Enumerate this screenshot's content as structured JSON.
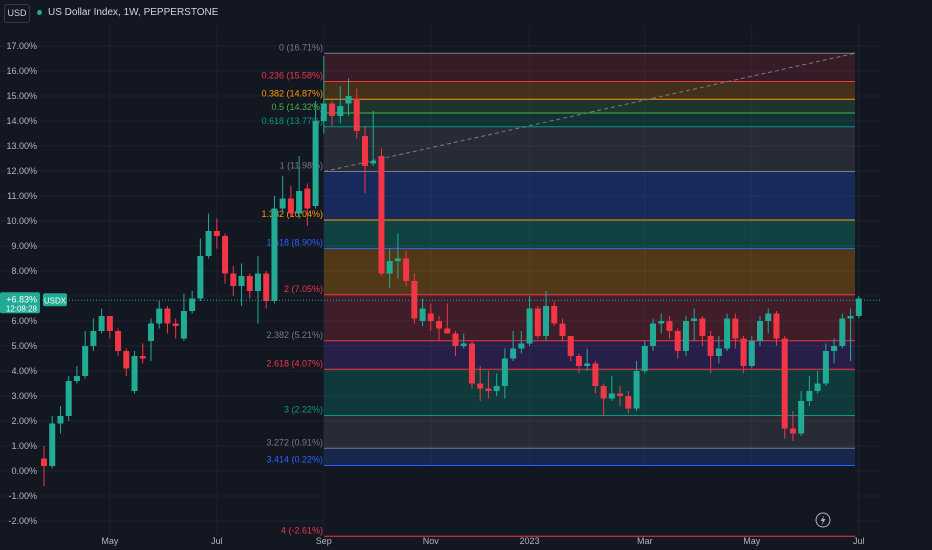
{
  "header": {
    "symbol": "USD",
    "title": "US Dollar Index, 1W, PEPPERSTONE"
  },
  "price_label": {
    "value": "+6.83%",
    "countdown": "12:08:28",
    "tag": "USDX"
  },
  "colors": {
    "background": "#131722",
    "up": "#22ab94",
    "down": "#f23645",
    "grid": "#1e222d",
    "axis_text": "#b2b5be"
  },
  "chart_data": {
    "type": "candlestick",
    "y_unit": "%",
    "ylim": [
      -2.0,
      17.0
    ],
    "y_ticks": [
      "17.00%",
      "16.00%",
      "15.00%",
      "14.00%",
      "13.00%",
      "12.00%",
      "11.00%",
      "10.00%",
      "9.00%",
      "8.00%",
      "7.00%",
      "6.00%",
      "5.00%",
      "4.00%",
      "3.00%",
      "2.00%",
      "1.00%",
      "0.00%",
      "-1.00%",
      "-2.00%"
    ],
    "x_ticks": [
      {
        "label": "May",
        "week": 8
      },
      {
        "label": "Jul",
        "week": 21
      },
      {
        "label": "Sep",
        "week": 34
      },
      {
        "label": "Nov",
        "week": 47
      },
      {
        "label": "2023",
        "week": 59
      },
      {
        "label": "Mar",
        "week": 73
      },
      {
        "label": "May",
        "week": 86
      },
      {
        "label": "Jul",
        "week": 99
      },
      {
        "label": "Sep",
        "week": 112
      },
      {
        "label": "Nov",
        "week": 125
      }
    ],
    "candles": [
      [
        0,
        0.5,
        0.2,
        1.0,
        -0.6
      ],
      [
        1,
        0.2,
        1.9,
        2.2,
        0.1
      ],
      [
        2,
        1.9,
        2.2,
        2.6,
        1.5
      ],
      [
        3,
        2.2,
        3.6,
        3.8,
        2.0
      ],
      [
        4,
        3.6,
        3.8,
        4.2,
        3.5
      ],
      [
        5,
        3.8,
        5.0,
        5.6,
        3.7
      ],
      [
        6,
        5.0,
        5.6,
        6.1,
        4.8
      ],
      [
        7,
        5.6,
        6.2,
        6.5,
        5.5
      ],
      [
        8,
        6.2,
        5.6,
        6.2,
        5.3
      ],
      [
        9,
        5.6,
        4.8,
        5.7,
        4.6
      ],
      [
        10,
        4.8,
        4.1,
        4.9,
        3.8
      ],
      [
        11,
        3.2,
        4.6,
        4.8,
        3.1
      ],
      [
        12,
        4.6,
        4.5,
        5.1,
        4.3
      ],
      [
        13,
        5.2,
        5.9,
        6.1,
        4.4
      ],
      [
        14,
        5.9,
        6.5,
        6.8,
        5.7
      ],
      [
        15,
        6.5,
        5.9,
        6.6,
        5.5
      ],
      [
        16,
        5.9,
        5.8,
        6.1,
        5.3
      ],
      [
        17,
        5.3,
        6.4,
        7.1,
        5.2
      ],
      [
        18,
        6.4,
        6.9,
        7.2,
        6.3
      ],
      [
        19,
        6.9,
        8.6,
        9.3,
        6.8
      ],
      [
        20,
        8.6,
        9.6,
        10.3,
        8.5
      ],
      [
        21,
        9.6,
        9.4,
        10.1,
        8.9
      ],
      [
        22,
        9.4,
        7.9,
        9.5,
        7.5
      ],
      [
        23,
        7.9,
        7.4,
        8.2,
        7.0
      ],
      [
        24,
        7.4,
        7.8,
        8.3,
        6.6
      ],
      [
        25,
        7.8,
        7.2,
        7.9,
        6.9
      ],
      [
        26,
        7.2,
        7.9,
        8.6,
        5.9
      ],
      [
        27,
        7.9,
        6.8,
        8.0,
        6.5
      ],
      [
        28,
        6.8,
        10.5,
        11.0,
        6.7
      ],
      [
        29,
        10.5,
        10.9,
        11.8,
        10.3
      ],
      [
        30,
        10.9,
        10.3,
        11.4,
        10.2
      ],
      [
        31,
        10.3,
        11.2,
        12.6,
        10.1
      ],
      [
        32,
        11.3,
        10.5,
        11.5,
        9.8
      ],
      [
        33,
        10.6,
        14.0,
        14.8,
        10.5
      ],
      [
        34,
        14.0,
        14.7,
        16.6,
        13.5
      ],
      [
        35,
        14.7,
        14.2,
        14.8,
        13.8
      ],
      [
        36,
        14.2,
        14.6,
        15.4,
        13.9
      ],
      [
        37,
        14.7,
        15.0,
        15.7,
        14.2
      ],
      [
        38,
        14.9,
        13.6,
        15.3,
        13.3
      ],
      [
        39,
        13.4,
        12.2,
        13.8,
        11.1
      ],
      [
        40,
        12.3,
        12.4,
        14.4,
        12.2
      ],
      [
        41,
        12.6,
        7.9,
        12.9,
        7.8
      ],
      [
        42,
        7.9,
        8.4,
        8.9,
        7.3
      ],
      [
        43,
        8.4,
        8.5,
        9.5,
        7.7
      ],
      [
        44,
        8.5,
        7.6,
        8.8,
        7.4
      ],
      [
        45,
        7.6,
        6.1,
        7.9,
        5.9
      ],
      [
        46,
        6.0,
        6.5,
        6.9,
        5.8
      ],
      [
        47,
        6.3,
        6.0,
        6.7,
        5.6
      ],
      [
        48,
        6.0,
        5.7,
        6.2,
        5.2
      ],
      [
        49,
        5.7,
        5.5,
        6.7,
        5.5
      ],
      [
        50,
        5.5,
        5.0,
        5.6,
        4.6
      ],
      [
        51,
        5.0,
        5.1,
        5.5,
        4.9
      ],
      [
        52,
        5.1,
        3.5,
        5.2,
        3.3
      ],
      [
        53,
        3.5,
        3.3,
        4.2,
        2.8
      ],
      [
        54,
        3.3,
        3.2,
        4.0,
        2.9
      ],
      [
        55,
        3.2,
        3.4,
        3.9,
        3.0
      ],
      [
        56,
        3.4,
        4.5,
        4.9,
        2.9
      ],
      [
        57,
        4.5,
        4.9,
        5.6,
        4.4
      ],
      [
        58,
        4.9,
        5.1,
        5.6,
        4.7
      ],
      [
        59,
        5.1,
        6.5,
        7.0,
        5.0
      ],
      [
        60,
        6.5,
        5.4,
        6.6,
        5.3
      ],
      [
        61,
        5.4,
        6.6,
        7.2,
        5.2
      ],
      [
        62,
        6.6,
        5.9,
        6.8,
        5.8
      ],
      [
        63,
        5.9,
        5.4,
        6.1,
        5.2
      ],
      [
        64,
        5.4,
        4.6,
        5.4,
        4.4
      ],
      [
        65,
        4.6,
        4.2,
        4.7,
        3.9
      ],
      [
        66,
        4.2,
        4.3,
        4.9,
        4.0
      ],
      [
        67,
        4.3,
        3.4,
        4.4,
        3.1
      ],
      [
        68,
        3.4,
        2.9,
        3.5,
        2.2
      ],
      [
        69,
        2.9,
        3.1,
        3.8,
        2.8
      ],
      [
        70,
        3.1,
        3.0,
        3.4,
        2.6
      ],
      [
        71,
        3.0,
        2.5,
        3.2,
        2.3
      ],
      [
        72,
        2.5,
        4.0,
        4.4,
        2.4
      ],
      [
        73,
        4.0,
        5.0,
        5.2,
        3.9
      ],
      [
        74,
        5.0,
        5.9,
        6.1,
        4.8
      ],
      [
        75,
        5.9,
        6.0,
        6.3,
        5.5
      ],
      [
        76,
        6.0,
        5.6,
        6.2,
        5.3
      ],
      [
        77,
        5.6,
        4.8,
        5.7,
        4.5
      ],
      [
        78,
        4.8,
        6.0,
        6.2,
        4.6
      ],
      [
        79,
        6.0,
        6.1,
        6.5,
        5.2
      ],
      [
        80,
        6.1,
        5.4,
        6.2,
        5.0
      ],
      [
        81,
        5.4,
        4.6,
        5.6,
        3.9
      ],
      [
        82,
        4.6,
        4.9,
        5.4,
        4.3
      ],
      [
        83,
        4.9,
        6.1,
        6.3,
        4.8
      ],
      [
        84,
        6.1,
        5.3,
        6.3,
        4.9
      ],
      [
        85,
        5.3,
        4.2,
        5.4,
        3.9
      ],
      [
        86,
        4.2,
        5.2,
        5.4,
        4.1
      ],
      [
        87,
        5.2,
        6.0,
        6.2,
        5.0
      ],
      [
        88,
        6.0,
        6.3,
        6.5,
        5.5
      ],
      [
        89,
        6.3,
        5.3,
        6.4,
        5.0
      ],
      [
        90,
        5.3,
        1.7,
        5.4,
        1.3
      ],
      [
        91,
        1.7,
        1.5,
        2.4,
        1.2
      ],
      [
        92,
        1.5,
        2.8,
        3.2,
        1.4
      ],
      [
        93,
        2.8,
        3.2,
        3.8,
        2.6
      ],
      [
        94,
        3.2,
        3.5,
        4.0,
        3.1
      ],
      [
        95,
        3.5,
        4.8,
        5.1,
        3.4
      ],
      [
        96,
        4.8,
        5.0,
        5.3,
        4.3
      ],
      [
        97,
        5.0,
        6.1,
        6.3,
        4.9
      ],
      [
        98,
        6.1,
        6.2,
        6.5,
        4.4
      ],
      [
        99,
        6.2,
        6.9,
        7.0,
        6.1
      ]
    ],
    "fib": {
      "start_week": 35,
      "levels": [
        {
          "ratio": "0",
          "pct": 16.71,
          "label": "0 (16.71%)",
          "line": "#787b86",
          "fill": "#f2364529",
          "text": "#787b86"
        },
        {
          "ratio": "0.236",
          "pct": 15.58,
          "label": "0.236 (15.58%)",
          "line": "#f23645",
          "fill": "#ff980033",
          "text": "#f23645"
        },
        {
          "ratio": "0.382",
          "pct": 14.87,
          "label": "0.382 (14.87%)",
          "line": "#ff9800",
          "fill": "#4caf5033",
          "text": "#ff9800"
        },
        {
          "ratio": "0.5",
          "pct": 14.32,
          "label": "0.5 (14.32%)",
          "line": "#4caf50",
          "fill": "#08998133",
          "text": "#4caf50"
        },
        {
          "ratio": "0.618",
          "pct": 13.77,
          "label": "0.618 (13.77%)",
          "line": "#089981",
          "fill": "#787b8633",
          "text": "#089981"
        },
        {
          "ratio": "1",
          "pct": 11.98,
          "label": "1 (11.98%)",
          "line": "#787b86",
          "fill": "#2962ff44",
          "text": "#787b86"
        },
        {
          "ratio": "1.382",
          "pct": 10.04,
          "label": "1.382 (10.04%)",
          "line": "#ff9800",
          "fill": "#08998155",
          "text": "#ff9800"
        },
        {
          "ratio": "1.618",
          "pct": 8.9,
          "label": "1.618 (8.90%)",
          "line": "#2962ff",
          "fill": "#ff980044",
          "text": "#2962ff"
        },
        {
          "ratio": "2",
          "pct": 7.05,
          "label": "2 (7.05%)",
          "line": "#f23645",
          "fill": "#f2364533",
          "text": "#f23645"
        },
        {
          "ratio": "2.382",
          "pct": 5.21,
          "label": "2.382 (5.21%)",
          "line": "#f23645",
          "fill": "#673ab744",
          "text": "#787b86"
        },
        {
          "ratio": "2.618",
          "pct": 4.07,
          "label": "2.618 (4.07%)",
          "line": "#f23645",
          "fill": "#08998144",
          "text": "#f23645"
        },
        {
          "ratio": "3",
          "pct": 2.22,
          "label": "3 (2.22%)",
          "line": "#089981",
          "fill": "#787b8633",
          "text": "#089981"
        },
        {
          "ratio": "3.272",
          "pct": 0.91,
          "label": "3.272 (0.91%)",
          "line": "#787b86",
          "fill": "#2962ff33",
          "text": "#787b86"
        },
        {
          "ratio": "3.414",
          "pct": 0.22,
          "label": "3.414 (0.22%)",
          "line": "#2962ff",
          "fill": "#131722",
          "text": "#2962ff"
        },
        {
          "ratio": "4",
          "pct": -2.61,
          "label": "4 (-2.61%)",
          "line": "#f23645",
          "fill": "#f236453d",
          "text": "#f23645"
        }
      ]
    },
    "trend_line": {
      "from": [
        35,
        11.98
      ],
      "to": [
        105,
        16.71
      ]
    },
    "last_value": 6.83
  }
}
